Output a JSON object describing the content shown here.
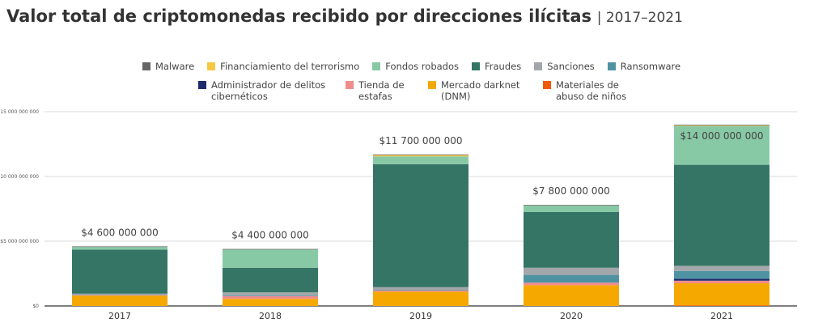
{
  "chart_data": {
    "type": "stacked_bar",
    "title": "Valor total de criptomonedas recibido por direcciones ilícitas",
    "subtitle": "| 2017–2021",
    "categories": [
      "2017",
      "2018",
      "2019",
      "2020",
      "2021"
    ],
    "series": [
      {
        "name": "Malware",
        "color": "#666666",
        "values": [
          50000000,
          50000000,
          50000000,
          50000000,
          50000000
        ]
      },
      {
        "name": "Financiamiento del terrorismo",
        "color": "#f5c842",
        "values": [
          0,
          0,
          100000000,
          0,
          50000000
        ]
      },
      {
        "name": "Fondos robados",
        "color": "#88c9a5",
        "values": [
          200000000,
          1400000000,
          600000000,
          500000000,
          3000000000
        ]
      },
      {
        "name": "Fraudes",
        "color": "#357565",
        "values": [
          3400000000,
          1900000000,
          9500000000,
          4300000000,
          7800000000
        ]
      },
      {
        "name": "Sanciones",
        "color": "#a3a7ab",
        "values": [
          50000000,
          250000000,
          200000000,
          550000000,
          400000000
        ]
      },
      {
        "name": "Ransomware",
        "color": "#4f93a3",
        "values": [
          50000000,
          50000000,
          50000000,
          600000000,
          600000000
        ]
      },
      {
        "name": "Administrador de delitos cibernéticos",
        "color": "#1f2a6b",
        "values": [
          0,
          0,
          0,
          0,
          150000000
        ]
      },
      {
        "name": "Tienda de estafas",
        "color": "#f08c8c",
        "values": [
          50000000,
          200000000,
          100000000,
          200000000,
          200000000
        ]
      },
      {
        "name": "Mercado darknet (DNM)",
        "color": "#f5a800",
        "values": [
          800000000,
          550000000,
          1100000000,
          1600000000,
          1700000000
        ]
      },
      {
        "name": "Materiales de abuso de niños",
        "color": "#f05a00",
        "values": [
          0,
          0,
          0,
          0,
          50000000
        ]
      }
    ],
    "totals": [
      4600000000,
      4400000000,
      11700000000,
      7800000000,
      14000000000
    ],
    "total_labels": [
      "$4 600 000 000",
      "$4 400 000 000",
      "$11 700 000 000",
      "$7 800 000 000",
      "$14 000 000 000"
    ],
    "ylim": [
      0,
      15000000000
    ],
    "yticks": [
      {
        "value": 0,
        "label": "$0"
      },
      {
        "value": 5000000000,
        "label": "$5 000 000 000"
      },
      {
        "value": 10000000000,
        "label": "$10 000 000 000"
      },
      {
        "value": 15000000000,
        "label": "$15 000 000 000"
      }
    ],
    "grid": true
  }
}
